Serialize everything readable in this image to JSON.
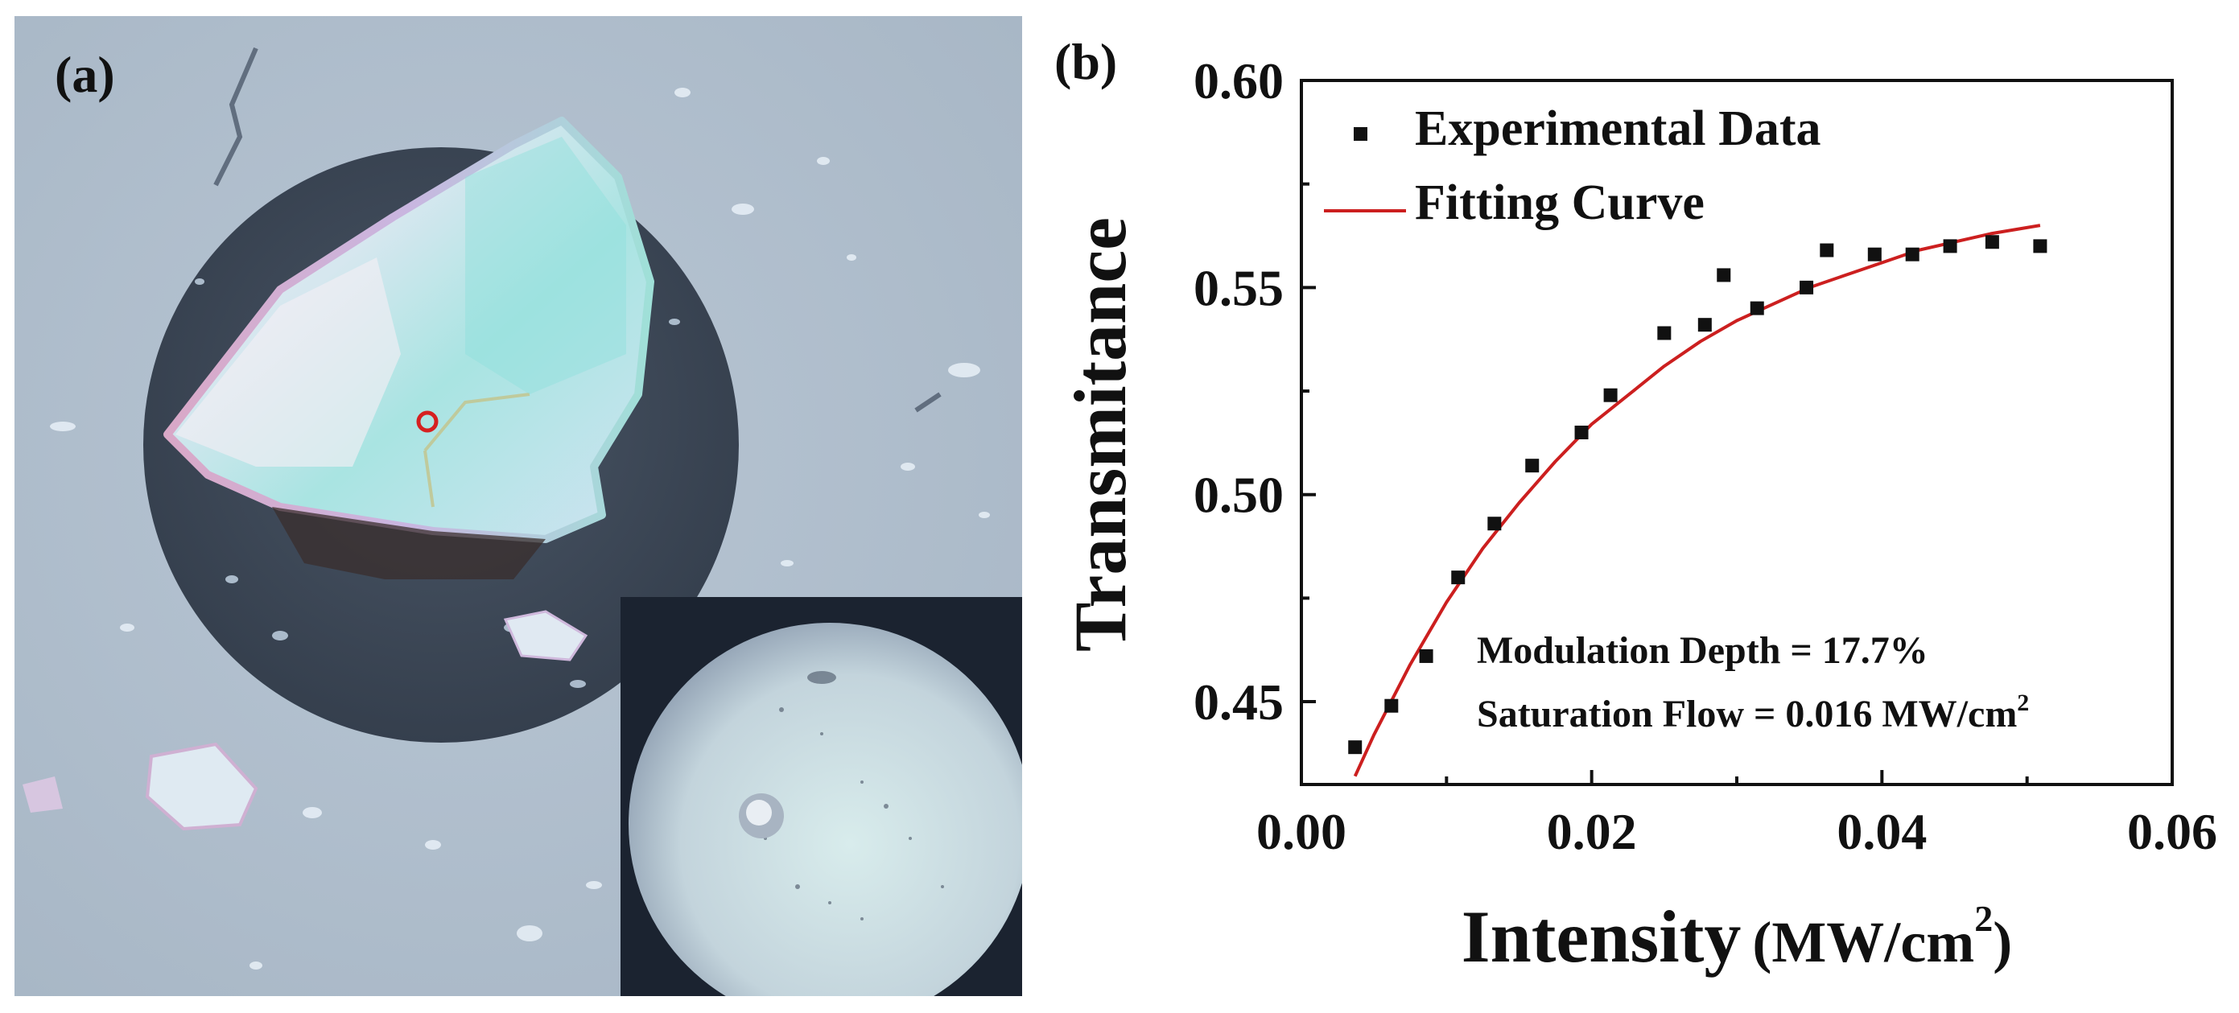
{
  "panels": {
    "a_label": "(a)",
    "b_label": "(b)"
  },
  "chart_data": {
    "type": "scatter",
    "title": "",
    "xlabel": "Intensity",
    "xlabel_unit": "(MW/cm",
    "xlabel_unit_sup": "2",
    "xlabel_unit_close": ")",
    "ylabel": "Transmitance",
    "xlim": [
      0.0,
      0.06
    ],
    "ylim": [
      0.43,
      0.6
    ],
    "x_ticks": [
      0.0,
      0.02,
      0.04,
      0.06
    ],
    "x_tick_labels": [
      "0.00",
      "0.02",
      "0.04",
      "0.06"
    ],
    "x_minor_ticks": [
      0.01,
      0.03,
      0.05
    ],
    "y_ticks": [
      0.45,
      0.5,
      0.55,
      0.6
    ],
    "y_tick_labels": [
      "0.45",
      "0.50",
      "0.55",
      "0.60"
    ],
    "y_minor_ticks": [
      0.475,
      0.525,
      0.575
    ],
    "legend": {
      "placement": "top-left",
      "entries": [
        "Experimental Data",
        "Fitting Curve"
      ]
    },
    "series": [
      {
        "name": "Experimental Data",
        "kind": "scatter",
        "color": "#111111",
        "x": [
          0.0037,
          0.0062,
          0.0086,
          0.0108,
          0.0133,
          0.0159,
          0.0193,
          0.0213,
          0.025,
          0.0278,
          0.0291,
          0.0314,
          0.0348,
          0.0362,
          0.0395,
          0.0421,
          0.0447,
          0.0476,
          0.0509
        ],
        "y": [
          0.439,
          0.449,
          0.461,
          0.48,
          0.493,
          0.507,
          0.515,
          0.524,
          0.539,
          0.541,
          0.553,
          0.545,
          0.55,
          0.559,
          0.558,
          0.558,
          0.56,
          0.561,
          0.56
        ]
      },
      {
        "name": "Fitting Curve",
        "kind": "line",
        "color": "#cc1f1f",
        "x": [
          0.0037,
          0.005,
          0.0075,
          0.01,
          0.0125,
          0.015,
          0.0175,
          0.02,
          0.0225,
          0.025,
          0.0275,
          0.03,
          0.0325,
          0.035,
          0.0375,
          0.04,
          0.0425,
          0.045,
          0.0475,
          0.0509
        ],
        "y": [
          0.432,
          0.442,
          0.459,
          0.474,
          0.487,
          0.498,
          0.508,
          0.517,
          0.524,
          0.531,
          0.537,
          0.542,
          0.546,
          0.55,
          0.553,
          0.556,
          0.559,
          0.561,
          0.563,
          0.565
        ]
      }
    ],
    "annotations": {
      "modulation_depth": "Modulation Depth = 17.7%",
      "saturation_flow_prefix": "Saturation Flow = 0.016 MW/cm",
      "saturation_flow_sup": "2"
    }
  },
  "colors": {
    "fit_line": "#cc1f1f",
    "marker": "#111111",
    "photo_background": "#aebdcc",
    "hole": "#3b4656",
    "target_circle": "#d62020"
  }
}
